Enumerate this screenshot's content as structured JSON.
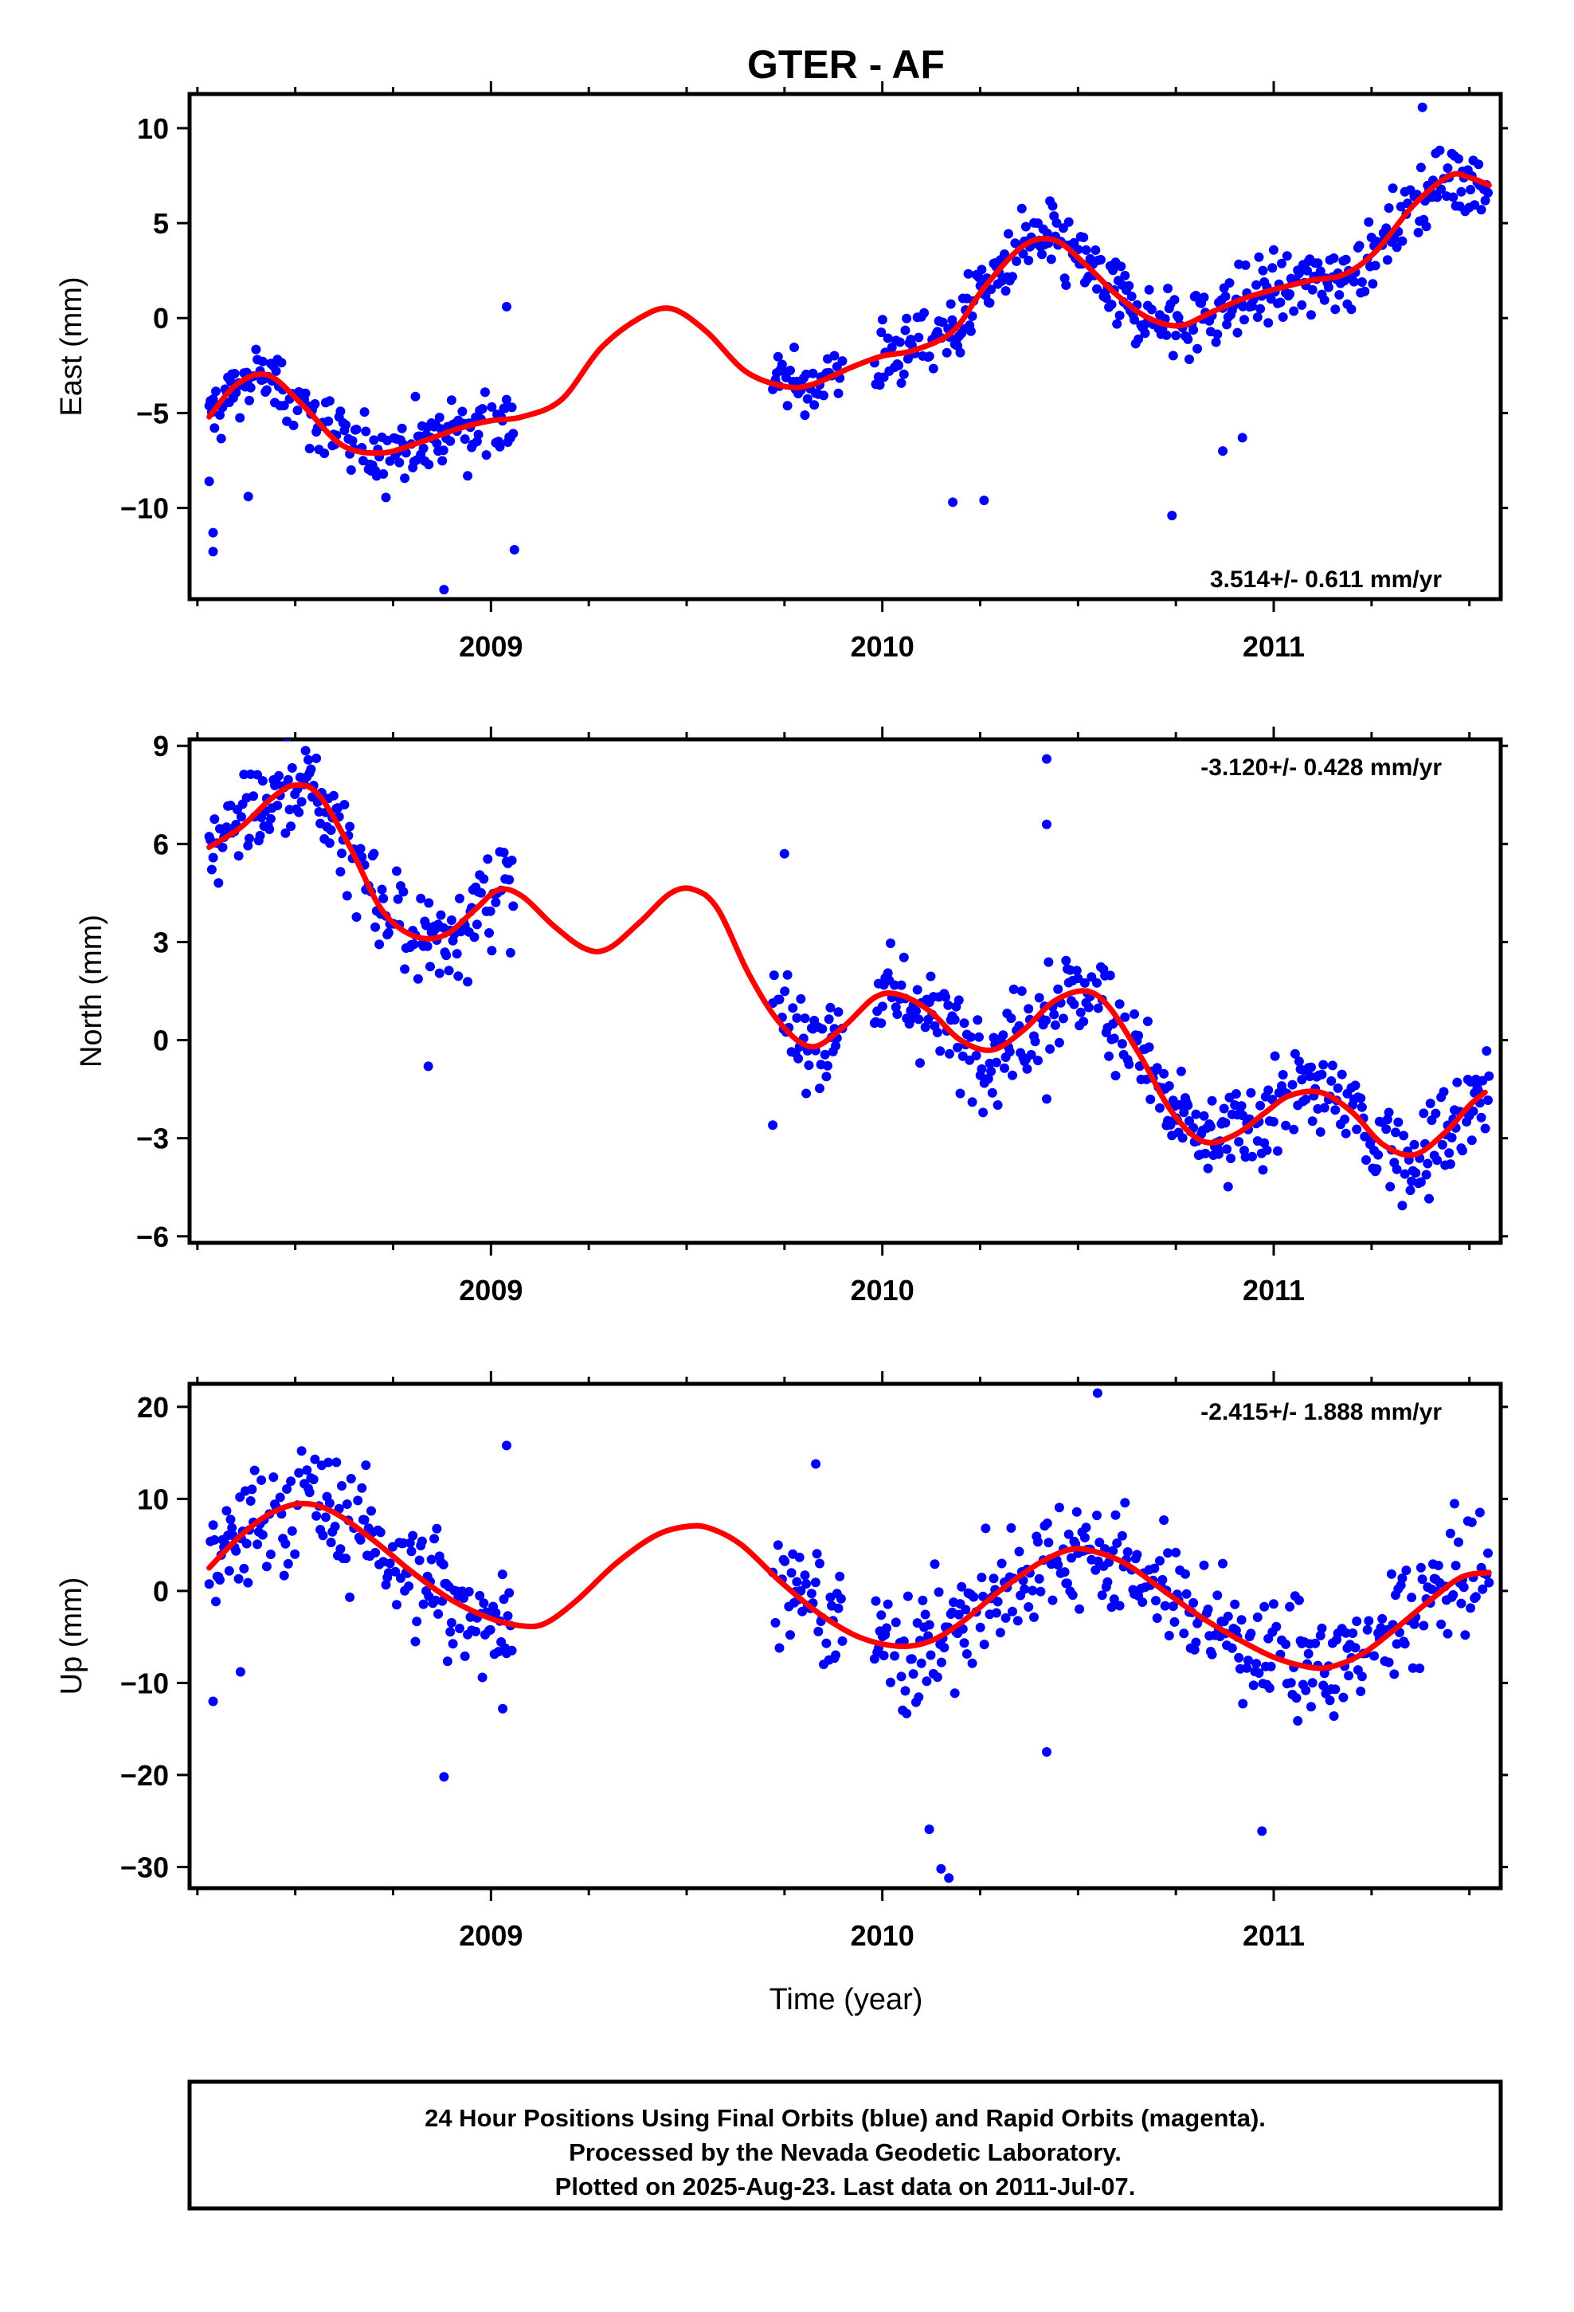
{
  "title": "GTER - AF",
  "xlabel": "Time (year)",
  "caption": [
    "24 Hour Positions Using Final Orbits (blue) and Rapid Orbits (magenta).",
    "Processed by the Nevada Geodetic Laboratory.",
    "Plotted on 2025-Aug-23. Last data on 2011-Jul-07."
  ],
  "colors": {
    "points": "#0000ff",
    "model": "#ff0000",
    "frame": "#000000"
  },
  "chart_data": [
    {
      "type": "scatter",
      "ylabel": "East (mm)",
      "rate_label": "3.514+/- 0.611 mm/yr",
      "xlim": [
        2008.23,
        2011.58
      ],
      "ylim": [
        -14.8,
        11.8
      ],
      "yticks": [
        10,
        5,
        0,
        -5,
        -10
      ],
      "ytick_labels": [
        "10",
        "5",
        "0",
        "−5",
        "−10"
      ],
      "xticks": [
        2009,
        2010,
        2011
      ],
      "xtick_labels": [
        "2009",
        "2010",
        "2011"
      ],
      "segments": [
        [
          2008.28,
          2009.06
        ],
        [
          2009.72,
          2009.9
        ],
        [
          2009.98,
          2011.55
        ]
      ],
      "model": {
        "x": [
          2008.28,
          2008.35,
          2008.43,
          2008.52,
          2008.62,
          2008.72,
          2008.81,
          2008.92,
          2009.0,
          2009.08,
          2009.18,
          2009.28,
          2009.38,
          2009.46,
          2009.55,
          2009.65,
          2009.75,
          2009.82,
          2009.92,
          2010.0,
          2010.08,
          2010.18,
          2010.26,
          2010.36,
          2010.44,
          2010.52,
          2010.6,
          2010.68,
          2010.76,
          2010.84,
          2010.92,
          2011.0,
          2011.1,
          2011.18,
          2011.26,
          2011.36,
          2011.45,
          2011.5,
          2011.55
        ],
        "y": [
          -5.2,
          -3.5,
          -3.0,
          -4.6,
          -6.7,
          -7.1,
          -6.6,
          -5.8,
          -5.4,
          -5.2,
          -4.3,
          -1.6,
          0.0,
          0.5,
          -0.7,
          -2.8,
          -3.6,
          -3.5,
          -2.6,
          -2.0,
          -1.7,
          -0.7,
          1.6,
          3.8,
          4.1,
          2.8,
          1.2,
          0.0,
          -0.4,
          0.3,
          1.0,
          1.5,
          2.0,
          2.3,
          3.5,
          6.0,
          7.5,
          7.4,
          7.0
        ]
      },
      "outliers": [
        [
          2008.29,
          -12.3
        ],
        [
          2008.29,
          -11.3
        ],
        [
          2008.28,
          -8.6
        ],
        [
          2008.38,
          -9.4
        ],
        [
          2008.88,
          -14.3
        ],
        [
          2009.06,
          -12.2
        ],
        [
          2009.04,
          0.6
        ],
        [
          2010.18,
          -9.7
        ],
        [
          2010.26,
          -9.6
        ],
        [
          2010.74,
          -10.4
        ],
        [
          2010.92,
          -6.3
        ],
        [
          2010.87,
          -7.0
        ],
        [
          2011.38,
          11.1
        ]
      ]
    },
    {
      "type": "scatter",
      "ylabel": "North (mm)",
      "rate_label": "-3.120+/- 0.428 mm/yr",
      "xlim": [
        2008.23,
        2011.58
      ],
      "ylim": [
        -6.2,
        9.2
      ],
      "yticks": [
        9,
        6,
        3,
        0,
        -3,
        -6
      ],
      "ytick_labels": [
        "9",
        "6",
        "3",
        "0",
        "−3",
        "−6"
      ],
      "xticks": [
        2009,
        2010,
        2011
      ],
      "xtick_labels": [
        "2009",
        "2010",
        "2011"
      ],
      "segments": [
        [
          2008.28,
          2009.06
        ],
        [
          2009.72,
          2009.9
        ],
        [
          2009.98,
          2011.55
        ]
      ],
      "model": {
        "x": [
          2008.28,
          2008.36,
          2008.44,
          2008.5,
          2008.56,
          2008.64,
          2008.72,
          2008.8,
          2008.88,
          2008.96,
          2009.02,
          2009.08,
          2009.16,
          2009.24,
          2009.3,
          2009.38,
          2009.46,
          2009.52,
          2009.58,
          2009.66,
          2009.74,
          2009.82,
          2009.9,
          2009.98,
          2010.04,
          2010.12,
          2010.2,
          2010.28,
          2010.36,
          2010.44,
          2010.52,
          2010.58,
          2010.66,
          2010.74,
          2010.82,
          2010.9,
          2010.98,
          2011.04,
          2011.12,
          2011.2,
          2011.28,
          2011.36,
          2011.44,
          2011.5,
          2011.54
        ],
        "y": [
          5.9,
          6.5,
          7.4,
          7.8,
          7.5,
          5.9,
          4.0,
          3.2,
          3.2,
          4.0,
          4.6,
          4.4,
          3.5,
          2.8,
          2.8,
          3.6,
          4.5,
          4.6,
          4.0,
          2.0,
          0.5,
          -0.2,
          0.4,
          1.3,
          1.4,
          0.9,
          0.0,
          -0.3,
          0.3,
          1.2,
          1.5,
          1.0,
          -0.5,
          -2.2,
          -3.1,
          -2.9,
          -2.2,
          -1.7,
          -1.6,
          -2.2,
          -3.2,
          -3.5,
          -2.8,
          -2.0,
          -1.6
        ]
      },
      "outliers": [
        [
          2010.42,
          8.6
        ],
        [
          2010.42,
          6.6
        ],
        [
          2010.42,
          -1.8
        ],
        [
          2009.75,
          5.7
        ],
        [
          2009.72,
          -2.6
        ],
        [
          2008.84,
          -0.8
        ],
        [
          2011.55,
          -1.1
        ]
      ]
    },
    {
      "type": "scatter",
      "ylabel": "Up (mm)",
      "rate_label": "-2.415+/- 1.888 mm/yr",
      "xlim": [
        2008.23,
        2011.58
      ],
      "ylim": [
        -32.3,
        22.5
      ],
      "yticks": [
        20,
        10,
        0,
        -10,
        -20,
        -30
      ],
      "ytick_labels": [
        "20",
        "10",
        "0",
        "−10",
        "−20",
        "−30"
      ],
      "xticks": [
        2009,
        2010,
        2011
      ],
      "xtick_labels": [
        "2009",
        "2010",
        "2011"
      ],
      "segments": [
        [
          2008.28,
          2009.06
        ],
        [
          2009.72,
          2009.9
        ],
        [
          2009.98,
          2011.55
        ]
      ],
      "model": {
        "x": [
          2008.28,
          2008.36,
          2008.44,
          2008.52,
          2008.6,
          2008.7,
          2008.8,
          2008.9,
          2009.0,
          2009.08,
          2009.14,
          2009.22,
          2009.32,
          2009.42,
          2009.5,
          2009.56,
          2009.64,
          2009.74,
          2009.84,
          2009.94,
          2010.04,
          2010.12,
          2010.2,
          2010.3,
          2010.4,
          2010.48,
          2010.54,
          2010.62,
          2010.72,
          2010.82,
          2010.92,
          2011.0,
          2011.08,
          2011.14,
          2011.22,
          2011.3,
          2011.4,
          2011.48,
          2011.55
        ],
        "y": [
          2.5,
          6.0,
          8.5,
          9.5,
          8.5,
          5.5,
          2.0,
          -1.0,
          -3.0,
          -3.8,
          -3.5,
          -1.0,
          3.0,
          6.0,
          7.0,
          6.8,
          5.0,
          1.0,
          -2.5,
          -5.0,
          -6.0,
          -5.5,
          -3.5,
          0.0,
          3.0,
          4.5,
          4.3,
          3.0,
          0.0,
          -3.0,
          -5.5,
          -7.2,
          -8.2,
          -8.3,
          -7.0,
          -4.5,
          -1.0,
          1.5,
          2.0
        ]
      },
      "outliers": [
        [
          2008.29,
          -12.0
        ],
        [
          2008.36,
          -8.8
        ],
        [
          2008.88,
          -20.2
        ],
        [
          2009.04,
          15.8
        ],
        [
          2009.03,
          -12.8
        ],
        [
          2010.17,
          -31.2
        ],
        [
          2010.15,
          -30.2
        ],
        [
          2010.12,
          -25.9
        ],
        [
          2010.55,
          21.5
        ],
        [
          2010.42,
          -17.5
        ],
        [
          2010.97,
          -26.1
        ],
        [
          2011.55,
          0.9
        ],
        [
          2009.83,
          13.8
        ]
      ]
    }
  ]
}
